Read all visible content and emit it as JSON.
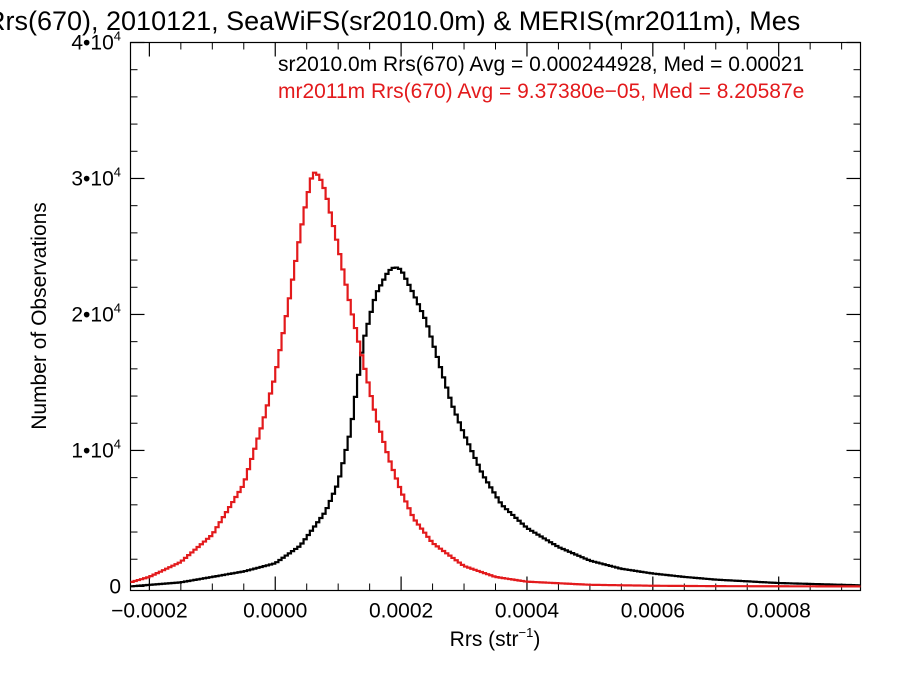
{
  "chart_data": {
    "type": "line",
    "title": "Rrs(670), 2010121, SeaWiFS(sr2010.0m) & MERIS(mr2011m), Mes",
    "xlabel": "Rrs (str",
    "xlabel_sup": "−1",
    "xlabel_end": ")",
    "ylabel": "Number of Observations",
    "xlim": [
      -0.00023,
      0.00093
    ],
    "ylim": [
      -300,
      40000
    ],
    "xticks": [
      {
        "value": -0.0002,
        "label": "−0.0002"
      },
      {
        "value": 0.0,
        "label": "0.0000"
      },
      {
        "value": 0.0002,
        "label": "0.0002"
      },
      {
        "value": 0.0004,
        "label": "0.0004"
      },
      {
        "value": 0.0006,
        "label": "0.0006"
      },
      {
        "value": 0.0008,
        "label": "0.0008"
      }
    ],
    "yticks": [
      {
        "value": 0,
        "mant": "0",
        "exp": ""
      },
      {
        "value": 10000,
        "mant": "1•10",
        "exp": "4"
      },
      {
        "value": 20000,
        "mant": "2•10",
        "exp": "4"
      },
      {
        "value": 30000,
        "mant": "3•10",
        "exp": "4"
      },
      {
        "value": 40000,
        "mant": "4•10",
        "exp": "4"
      }
    ],
    "grid": false,
    "legend_position": "top-right",
    "series": [
      {
        "name": "sr2010.0m Rrs(670) Avg = 0.000244928, Med = 0.00021",
        "color": "#000000",
        "x": [
          -0.00023,
          -0.00015,
          -0.0001,
          -5e-05,
          0.0,
          4e-05,
          8e-05,
          0.0001,
          0.00012,
          0.00014,
          0.00016,
          0.00018,
          0.00019,
          0.0002,
          0.00022,
          0.00024,
          0.00026,
          0.00028,
          0.0003,
          0.00033,
          0.00036,
          0.0004,
          0.00045,
          0.0005,
          0.00055,
          0.0006,
          0.00065,
          0.0007,
          0.0008,
          0.00093
        ],
        "y": [
          0,
          300,
          700,
          1100,
          1700,
          3000,
          5500,
          7600,
          11500,
          18000,
          21500,
          23200,
          23500,
          23300,
          21500,
          19500,
          16500,
          13500,
          11200,
          8200,
          6000,
          4300,
          2900,
          1900,
          1300,
          950,
          700,
          500,
          250,
          80
        ]
      },
      {
        "name": "mr2011m Rrs(670) Avg = 9.37380e−05, Med = 8.20587e",
        "color": "#e31a1c",
        "x": [
          -0.00023,
          -0.0002,
          -0.00015,
          -0.0001,
          -5e-05,
          -2e-05,
          0.0,
          2e-05,
          4e-05,
          5e-05,
          6e-05,
          7e-05,
          8e-05,
          0.0001,
          0.00012,
          0.00014,
          0.00016,
          0.00018,
          0.0002,
          0.00022,
          0.00025,
          0.0003,
          0.00035,
          0.0004,
          0.0005,
          0.0006,
          0.0007,
          0.00093
        ],
        "y": [
          300,
          700,
          1800,
          3800,
          7500,
          12000,
          15500,
          20500,
          26000,
          28500,
          30500,
          30200,
          29000,
          25000,
          20500,
          16500,
          12500,
          9500,
          7000,
          5000,
          3200,
          1500,
          700,
          350,
          120,
          50,
          20,
          0
        ]
      }
    ]
  }
}
